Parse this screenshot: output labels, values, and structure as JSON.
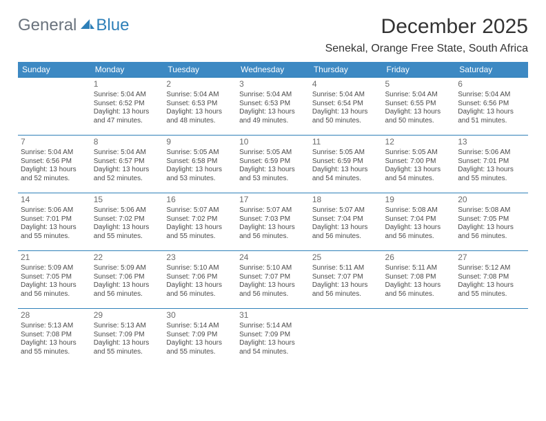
{
  "brand": {
    "part1": "General",
    "part2": "Blue"
  },
  "title": "December 2025",
  "location": "Senekal, Orange Free State, South Africa",
  "colors": {
    "header_bg": "#3d89c3",
    "header_text": "#ffffff",
    "rule": "#2d7fb8",
    "body_text": "#4a4a4a",
    "daynum": "#6b6b6b",
    "brand_gray": "#6a737d",
    "brand_blue": "#2d7fb8",
    "page_bg": "#ffffff"
  },
  "typography": {
    "title_pt": 30,
    "location_pt": 16,
    "th_pt": 12,
    "daynum_pt": 12,
    "body_pt": 10
  },
  "day_headers": [
    "Sunday",
    "Monday",
    "Tuesday",
    "Wednesday",
    "Thursday",
    "Friday",
    "Saturday"
  ],
  "weeks": [
    [
      {},
      {
        "n": "1",
        "sr": "5:04 AM",
        "ss": "6:52 PM",
        "dl": "13 hours and 47 minutes."
      },
      {
        "n": "2",
        "sr": "5:04 AM",
        "ss": "6:53 PM",
        "dl": "13 hours and 48 minutes."
      },
      {
        "n": "3",
        "sr": "5:04 AM",
        "ss": "6:53 PM",
        "dl": "13 hours and 49 minutes."
      },
      {
        "n": "4",
        "sr": "5:04 AM",
        "ss": "6:54 PM",
        "dl": "13 hours and 50 minutes."
      },
      {
        "n": "5",
        "sr": "5:04 AM",
        "ss": "6:55 PM",
        "dl": "13 hours and 50 minutes."
      },
      {
        "n": "6",
        "sr": "5:04 AM",
        "ss": "6:56 PM",
        "dl": "13 hours and 51 minutes."
      }
    ],
    [
      {
        "n": "7",
        "sr": "5:04 AM",
        "ss": "6:56 PM",
        "dl": "13 hours and 52 minutes."
      },
      {
        "n": "8",
        "sr": "5:04 AM",
        "ss": "6:57 PM",
        "dl": "13 hours and 52 minutes."
      },
      {
        "n": "9",
        "sr": "5:05 AM",
        "ss": "6:58 PM",
        "dl": "13 hours and 53 minutes."
      },
      {
        "n": "10",
        "sr": "5:05 AM",
        "ss": "6:59 PM",
        "dl": "13 hours and 53 minutes."
      },
      {
        "n": "11",
        "sr": "5:05 AM",
        "ss": "6:59 PM",
        "dl": "13 hours and 54 minutes."
      },
      {
        "n": "12",
        "sr": "5:05 AM",
        "ss": "7:00 PM",
        "dl": "13 hours and 54 minutes."
      },
      {
        "n": "13",
        "sr": "5:06 AM",
        "ss": "7:01 PM",
        "dl": "13 hours and 55 minutes."
      }
    ],
    [
      {
        "n": "14",
        "sr": "5:06 AM",
        "ss": "7:01 PM",
        "dl": "13 hours and 55 minutes."
      },
      {
        "n": "15",
        "sr": "5:06 AM",
        "ss": "7:02 PM",
        "dl": "13 hours and 55 minutes."
      },
      {
        "n": "16",
        "sr": "5:07 AM",
        "ss": "7:02 PM",
        "dl": "13 hours and 55 minutes."
      },
      {
        "n": "17",
        "sr": "5:07 AM",
        "ss": "7:03 PM",
        "dl": "13 hours and 56 minutes."
      },
      {
        "n": "18",
        "sr": "5:07 AM",
        "ss": "7:04 PM",
        "dl": "13 hours and 56 minutes."
      },
      {
        "n": "19",
        "sr": "5:08 AM",
        "ss": "7:04 PM",
        "dl": "13 hours and 56 minutes."
      },
      {
        "n": "20",
        "sr": "5:08 AM",
        "ss": "7:05 PM",
        "dl": "13 hours and 56 minutes."
      }
    ],
    [
      {
        "n": "21",
        "sr": "5:09 AM",
        "ss": "7:05 PM",
        "dl": "13 hours and 56 minutes."
      },
      {
        "n": "22",
        "sr": "5:09 AM",
        "ss": "7:06 PM",
        "dl": "13 hours and 56 minutes."
      },
      {
        "n": "23",
        "sr": "5:10 AM",
        "ss": "7:06 PM",
        "dl": "13 hours and 56 minutes."
      },
      {
        "n": "24",
        "sr": "5:10 AM",
        "ss": "7:07 PM",
        "dl": "13 hours and 56 minutes."
      },
      {
        "n": "25",
        "sr": "5:11 AM",
        "ss": "7:07 PM",
        "dl": "13 hours and 56 minutes."
      },
      {
        "n": "26",
        "sr": "5:11 AM",
        "ss": "7:08 PM",
        "dl": "13 hours and 56 minutes."
      },
      {
        "n": "27",
        "sr": "5:12 AM",
        "ss": "7:08 PM",
        "dl": "13 hours and 55 minutes."
      }
    ],
    [
      {
        "n": "28",
        "sr": "5:13 AM",
        "ss": "7:08 PM",
        "dl": "13 hours and 55 minutes."
      },
      {
        "n": "29",
        "sr": "5:13 AM",
        "ss": "7:09 PM",
        "dl": "13 hours and 55 minutes."
      },
      {
        "n": "30",
        "sr": "5:14 AM",
        "ss": "7:09 PM",
        "dl": "13 hours and 55 minutes."
      },
      {
        "n": "31",
        "sr": "5:14 AM",
        "ss": "7:09 PM",
        "dl": "13 hours and 54 minutes."
      },
      {},
      {},
      {}
    ]
  ],
  "labels": {
    "sunrise": "Sunrise:",
    "sunset": "Sunset:",
    "daylight": "Daylight:"
  }
}
